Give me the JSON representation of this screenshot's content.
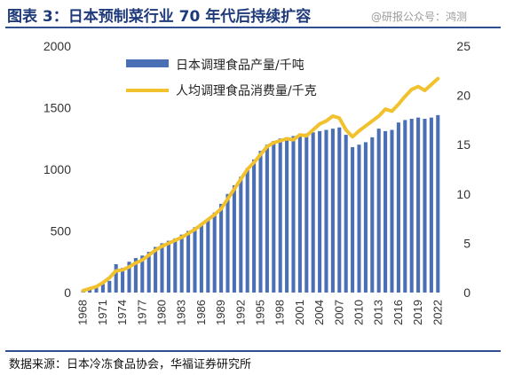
{
  "header": {
    "title": "图表 3：日本预制菜行业 70 年代后持续扩容"
  },
  "watermark": {
    "text": "@研报公众号：鸿测"
  },
  "footer": {
    "source": "数据来源：日本冷冻食品协会，华福证券研究所"
  },
  "colors": {
    "bars": "#4a6fb5",
    "line": "#f2c12e",
    "rule": "#2f4f8f",
    "title": "#1f3a7a"
  },
  "chart_data": {
    "type": "bar",
    "x": [
      1968,
      1969,
      1970,
      1971,
      1972,
      1973,
      1974,
      1975,
      1976,
      1977,
      1978,
      1979,
      1980,
      1981,
      1982,
      1983,
      1984,
      1985,
      1986,
      1987,
      1988,
      1989,
      1990,
      1991,
      1992,
      1993,
      1994,
      1995,
      1996,
      1997,
      1998,
      1999,
      2000,
      2001,
      2002,
      2003,
      2004,
      2005,
      2006,
      2007,
      2008,
      2009,
      2010,
      2011,
      2012,
      2013,
      2014,
      2015,
      2016,
      2017,
      2018,
      2019,
      2020,
      2021,
      2022
    ],
    "xtick_labels": [
      "1968",
      "1971",
      "1974",
      "1977",
      "1980",
      "1983",
      "1986",
      "1989",
      "1992",
      "1995",
      "1998",
      "2001",
      "2004",
      "2007",
      "2010",
      "2013",
      "2016",
      "2019",
      "2022"
    ],
    "series": [
      {
        "name": "日本调理食品产量/千吨",
        "type": "bar",
        "axis": "left",
        "values": [
          20,
          35,
          50,
          70,
          95,
          230,
          200,
          250,
          280,
          300,
          330,
          370,
          400,
          420,
          440,
          470,
          500,
          530,
          560,
          600,
          650,
          720,
          800,
          870,
          940,
          1010,
          1080,
          1150,
          1200,
          1230,
          1250,
          1260,
          1270,
          1280,
          1290,
          1300,
          1310,
          1320,
          1330,
          1340,
          1280,
          1180,
          1200,
          1220,
          1260,
          1330,
          1310,
          1320,
          1380,
          1400,
          1410,
          1420,
          1410,
          1420,
          1440
        ]
      },
      {
        "name": "人均调理食品消费量/千克",
        "type": "line",
        "axis": "right",
        "values": [
          0.2,
          0.4,
          0.6,
          1.0,
          1.5,
          2.2,
          2.3,
          2.6,
          3.0,
          3.3,
          3.8,
          4.3,
          4.7,
          5.0,
          5.3,
          5.6,
          6.0,
          6.4,
          6.9,
          7.4,
          7.9,
          8.5,
          9.5,
          10.5,
          11.5,
          12.5,
          13.2,
          14.0,
          14.8,
          15.2,
          15.4,
          15.6,
          15.5,
          16.0,
          15.9,
          16.5,
          17.1,
          17.4,
          17.9,
          17.7,
          16.5,
          15.8,
          16.4,
          16.9,
          17.4,
          17.9,
          18.6,
          18.4,
          19.1,
          19.9,
          20.6,
          20.9,
          20.5,
          21.1,
          21.7
        ]
      }
    ],
    "ylim_left": [
      0,
      2000
    ],
    "yticks_left": [
      "0",
      "500",
      "1000",
      "1500",
      "2000"
    ],
    "ylim_right": [
      0,
      25
    ],
    "yticks_right": [
      "0",
      "5",
      "10",
      "15",
      "20",
      "25"
    ],
    "legend": "top-center",
    "grid": false
  }
}
